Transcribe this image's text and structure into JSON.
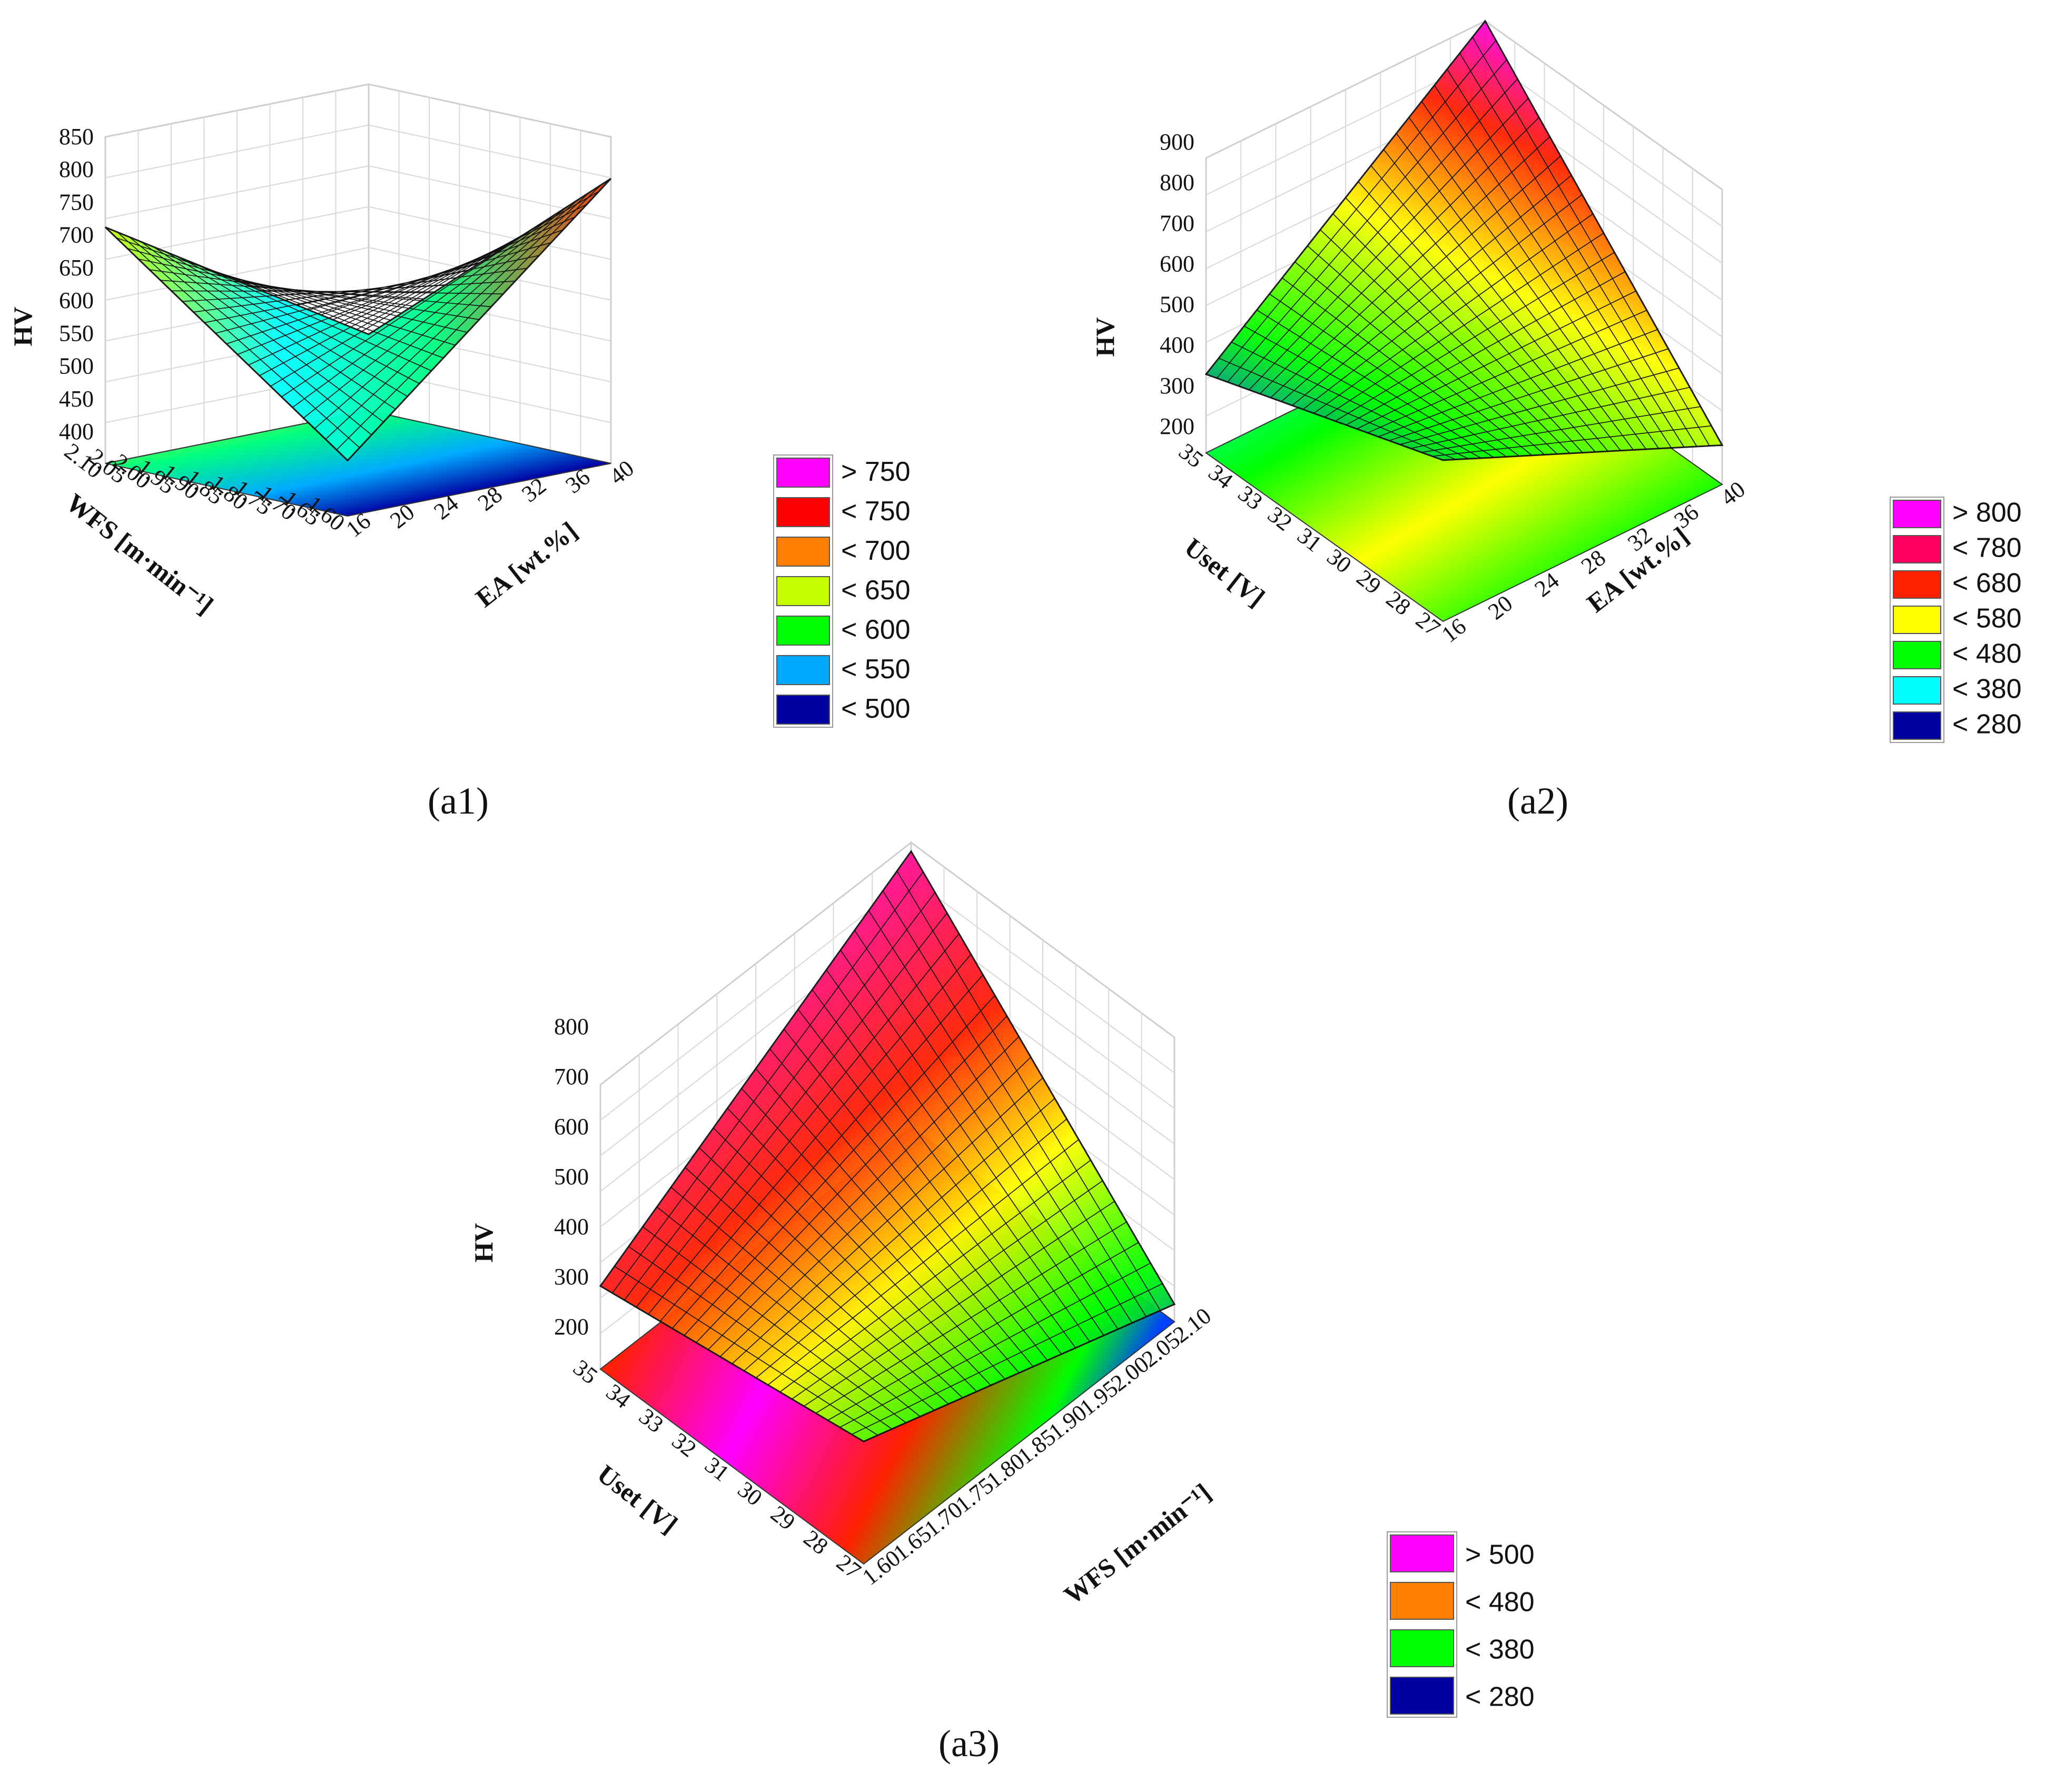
{
  "chart_data": [
    {
      "type": "surface3d",
      "caption": "(a1)",
      "zlabel": "HV",
      "xlabel": "WFS [m·min⁻¹]",
      "ylabel": "EA [wt.%]",
      "zticks": [
        "850",
        "800",
        "750",
        "700",
        "650",
        "600",
        "550",
        "500",
        "450",
        "400"
      ],
      "xticks": [
        "2.10",
        "2.05",
        "2.00",
        "1.95",
        "1.90",
        "1.85",
        "1.80",
        "1.75",
        "1.70",
        "1.65",
        "1.60"
      ],
      "yticks": [
        "16",
        "20",
        "24",
        "28",
        "32",
        "36",
        "40"
      ],
      "zlim": [
        380,
        850
      ],
      "corner_values": {
        "wfs_high_ea_low": 720,
        "wfs_high_ea_high": 490,
        "wfs_low_ea_low": 460,
        "wfs_low_ea_high": 790
      },
      "legend": [
        {
          "label": "> 750",
          "color": "#ff00ff"
        },
        {
          "label": "< 750",
          "color": "#ff0000"
        },
        {
          "label": "< 700",
          "color": "#ff7f00"
        },
        {
          "label": "< 650",
          "color": "#c8ff00"
        },
        {
          "label": "< 600",
          "color": "#00ff00"
        },
        {
          "label": "< 550",
          "color": "#00aaff"
        },
        {
          "label": "< 500",
          "color": "#0000a0"
        }
      ]
    },
    {
      "type": "surface3d",
      "caption": "(a2)",
      "zlabel": "HV",
      "xlabel": "Uset [V]",
      "ylabel": "EA [wt.%]",
      "zticks": [
        "900",
        "800",
        "700",
        "600",
        "500",
        "400",
        "300",
        "200"
      ],
      "xticks": [
        "35",
        "34",
        "33",
        "32",
        "31",
        "30",
        "29",
        "28",
        "27"
      ],
      "yticks": [
        "16",
        "20",
        "24",
        "28",
        "32",
        "36",
        "40"
      ],
      "zlim": [
        150,
        900
      ],
      "corner_values": {
        "u_high_ea_low": 350,
        "u_high_ea_high": 900,
        "u_low_ea_low": 560,
        "u_low_ea_high": 250
      },
      "legend": [
        {
          "label": "> 800",
          "color": "#ff00ff"
        },
        {
          "label": "< 780",
          "color": "#ff0060"
        },
        {
          "label": "< 680",
          "color": "#ff2000"
        },
        {
          "label": "< 580",
          "color": "#ffff00"
        },
        {
          "label": "< 480",
          "color": "#00ff00"
        },
        {
          "label": "< 380",
          "color": "#00ffff"
        },
        {
          "label": "< 280",
          "color": "#0000a0"
        }
      ]
    },
    {
      "type": "surface3d",
      "caption": "(a3)",
      "zlabel": "HV",
      "xlabel": "Uset [V]",
      "ylabel": "WFS [m·min⁻¹]",
      "zticks": [
        "800",
        "700",
        "600",
        "500",
        "400",
        "300",
        "200"
      ],
      "xticks": [
        "35",
        "34",
        "33",
        "32",
        "31",
        "30",
        "29",
        "28",
        "27"
      ],
      "yticks": [
        "1.60",
        "1.65",
        "1.70",
        "1.75",
        "1.80",
        "1.85",
        "1.90",
        "1.95",
        "2.00",
        "2.05",
        "2.10"
      ],
      "zlim": [
        150,
        800
      ],
      "corner_values": {
        "u_high_wfs_low": 340,
        "u_high_wfs_high": 780,
        "u_low_wfs_low": 430,
        "u_low_wfs_high": 190
      },
      "legend": [
        {
          "label": "> 500",
          "color": "#ff00ff"
        },
        {
          "label": "< 480",
          "color": "#ff7f00"
        },
        {
          "label": "< 380",
          "color": "#00ff00"
        },
        {
          "label": "< 280",
          "color": "#0000a0"
        }
      ]
    }
  ]
}
